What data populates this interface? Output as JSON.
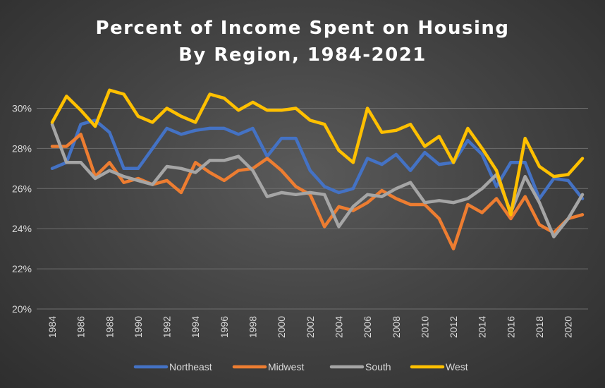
{
  "chart_data": {
    "type": "line",
    "title": "Percent of Income Spent on Housing",
    "subtitle": "By Region, 1984-2021",
    "x": [
      1984,
      1985,
      1986,
      1987,
      1988,
      1989,
      1990,
      1991,
      1992,
      1993,
      1994,
      1995,
      1996,
      1997,
      1998,
      1999,
      2000,
      2001,
      2002,
      2003,
      2004,
      2005,
      2006,
      2007,
      2008,
      2009,
      2010,
      2011,
      2012,
      2013,
      2014,
      2015,
      2016,
      2017,
      2018,
      2019,
      2020,
      2021
    ],
    "x_tick_labels": [
      "1984",
      "1986",
      "1988",
      "1990",
      "1992",
      "1994",
      "1996",
      "1998",
      "2000",
      "2002",
      "2004",
      "2006",
      "2008",
      "2010",
      "2012",
      "2014",
      "2016",
      "2018",
      "2020"
    ],
    "y_ticks": [
      20,
      22,
      24,
      26,
      28,
      30
    ],
    "y_tick_labels": [
      "20%",
      "22%",
      "24%",
      "26%",
      "28%",
      "30%"
    ],
    "ylim": [
      20,
      31
    ],
    "grid": true,
    "legend_position": "bottom",
    "series": [
      {
        "name": "Northeast",
        "color": "#4472c4",
        "values": [
          27.0,
          27.3,
          29.2,
          29.4,
          28.8,
          27.0,
          27.0,
          28.0,
          29.0,
          28.7,
          28.9,
          29.0,
          29.0,
          28.7,
          29.0,
          27.6,
          28.5,
          28.5,
          26.9,
          26.1,
          25.8,
          26.0,
          27.5,
          27.2,
          27.7,
          26.9,
          27.8,
          27.2,
          27.3,
          28.4,
          27.7,
          26.1,
          27.3,
          27.3,
          25.5,
          26.5,
          26.4,
          25.5
        ]
      },
      {
        "name": "Midwest",
        "color": "#ed7d31",
        "values": [
          28.1,
          28.1,
          28.7,
          26.6,
          27.3,
          26.3,
          26.5,
          26.2,
          26.4,
          25.8,
          27.3,
          26.8,
          26.4,
          26.9,
          27.0,
          27.5,
          26.9,
          26.1,
          25.7,
          24.1,
          25.1,
          24.9,
          25.3,
          25.9,
          25.5,
          25.2,
          25.2,
          24.5,
          23.0,
          25.2,
          24.8,
          25.5,
          24.5,
          25.6,
          24.2,
          23.8,
          24.5,
          24.7
        ]
      },
      {
        "name": "South",
        "color": "#a5a5a5",
        "values": [
          29.2,
          27.3,
          27.3,
          26.5,
          26.9,
          26.6,
          26.4,
          26.2,
          27.1,
          27.0,
          26.8,
          27.4,
          27.4,
          27.6,
          26.9,
          25.6,
          25.8,
          25.7,
          25.8,
          25.7,
          24.1,
          25.1,
          25.7,
          25.6,
          26.0,
          26.3,
          25.3,
          25.4,
          25.3,
          25.5,
          26.0,
          26.7,
          24.8,
          26.6,
          25.3,
          23.6,
          24.5,
          25.7
        ]
      },
      {
        "name": "West",
        "color": "#ffc000",
        "values": [
          29.3,
          30.6,
          29.9,
          29.1,
          30.9,
          30.7,
          29.6,
          29.3,
          30.0,
          29.6,
          29.3,
          30.7,
          30.5,
          29.9,
          30.3,
          29.9,
          29.9,
          30.0,
          29.4,
          29.2,
          27.9,
          27.3,
          30.0,
          28.8,
          28.9,
          29.2,
          28.1,
          28.6,
          27.3,
          29.0,
          28.0,
          26.9,
          24.7,
          28.5,
          27.1,
          26.6,
          26.7,
          27.5
        ]
      }
    ]
  }
}
